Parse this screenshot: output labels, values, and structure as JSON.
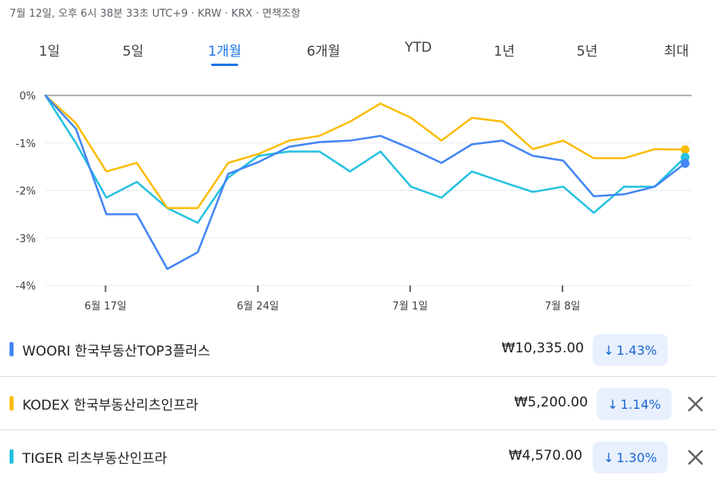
{
  "status_line": "7월 12일, 오후 6시 38분 33초 UTC+9 · KRW · KRX · 면책조항",
  "tabs": [
    {
      "label": "1일",
      "active": false
    },
    {
      "label": "5일",
      "active": false
    },
    {
      "label": "1개월",
      "active": true
    },
    {
      "label": "6개월",
      "active": false
    },
    {
      "label": "YTD",
      "active": false
    },
    {
      "label": "1년",
      "active": false
    },
    {
      "label": "5년",
      "active": false
    },
    {
      "label": "최대",
      "active": false
    }
  ],
  "chart_data": {
    "type": "line",
    "ylim": [
      -4,
      0
    ],
    "yticks": [
      "0%",
      "-1%",
      "-2%",
      "-3%",
      "-4%"
    ],
    "xticks": [
      {
        "label": "6월 17일",
        "index": 2
      },
      {
        "label": "6월 24일",
        "index": 7
      },
      {
        "label": "7월 1일",
        "index": 12
      },
      {
        "label": "7월 8일",
        "index": 17
      }
    ],
    "grid": true,
    "series": [
      {
        "name": "WOORI 한국부동산TOP3플러스",
        "color": "#4285f4",
        "values": [
          0,
          -0.7,
          -2.5,
          -2.5,
          -3.65,
          -3.3,
          -1.65,
          -1.4,
          -1.08,
          -0.98,
          -0.95,
          -0.85,
          -1.12,
          -1.42,
          -1.03,
          -0.95,
          -1.27,
          -1.37,
          -2.12,
          -2.08,
          -1.92,
          -1.43
        ]
      },
      {
        "name": "KODEX 한국부동산리츠인프라",
        "color": "#fbbc04",
        "values": [
          0,
          -0.58,
          -1.6,
          -1.42,
          -2.37,
          -2.37,
          -1.42,
          -1.23,
          -0.95,
          -0.85,
          -0.55,
          -0.17,
          -0.47,
          -0.95,
          -0.47,
          -0.55,
          -1.13,
          -0.95,
          -1.32,
          -1.32,
          -1.13,
          -1.14
        ]
      },
      {
        "name": "TIGER 리츠부동산인프라",
        "color": "#24c1e0",
        "values": [
          0,
          -1.0,
          -2.15,
          -1.82,
          -2.37,
          -2.68,
          -1.73,
          -1.27,
          -1.18,
          -1.18,
          -1.6,
          -1.18,
          -1.92,
          -2.15,
          -1.6,
          -1.82,
          -2.03,
          -1.92,
          -2.47,
          -1.92,
          -1.92,
          -1.3
        ]
      }
    ]
  },
  "stocks": [
    {
      "name": "WOORI 한국부동산TOP3플러스",
      "color": "#4285f4",
      "price": "₩10,335.00",
      "arrow": "↓",
      "change": "1.43%",
      "removable": false
    },
    {
      "name": "KODEX 한국부동산리츠인프라",
      "color": "#fbbc04",
      "price": "₩5,200.00",
      "arrow": "↓",
      "change": "1.14%",
      "removable": true
    },
    {
      "name": "TIGER 리츠부동산인프라",
      "color": "#24c1e0",
      "price": "₩4,570.00",
      "arrow": "↓",
      "change": "1.30%",
      "removable": true
    }
  ]
}
